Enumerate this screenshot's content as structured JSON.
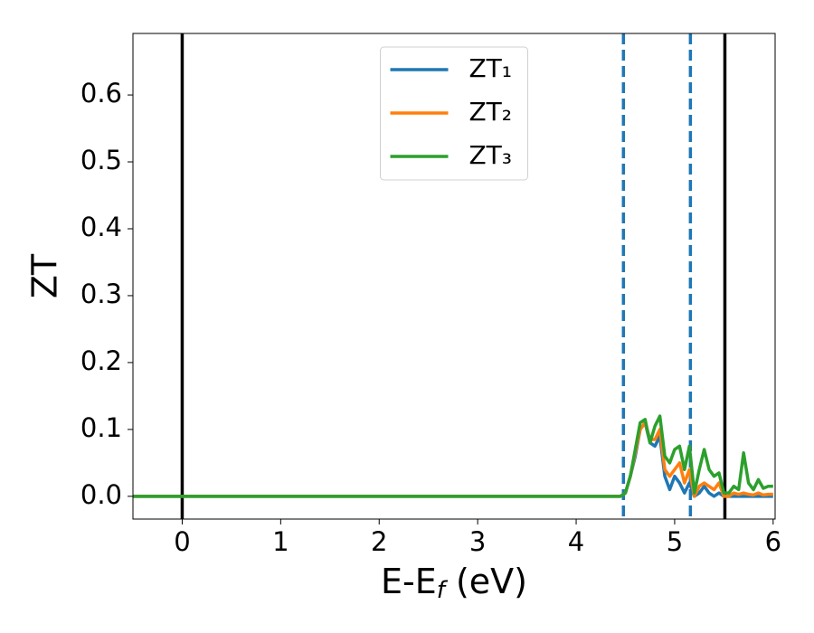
{
  "chart_data": {
    "type": "line",
    "ylabel": "ZT",
    "xlabel": [
      "E-E",
      "f",
      " (eV)"
    ],
    "x": [
      -0.5,
      4.45,
      4.5,
      4.55,
      4.6,
      4.65,
      4.7,
      4.75,
      4.8,
      4.85,
      4.9,
      4.95,
      5.0,
      5.05,
      5.1,
      5.15,
      5.2,
      5.25,
      5.3,
      5.35,
      5.4,
      5.45,
      5.5,
      5.55,
      5.6,
      5.65,
      5.7,
      5.75,
      5.8,
      5.85,
      5.9,
      5.95,
      6.0
    ],
    "series": [
      {
        "name": "ZT₁",
        "color": "#1f77b4",
        "values": [
          0,
          0,
          0.005,
          0.03,
          0.06,
          0.1,
          0.11,
          0.08,
          0.075,
          0.09,
          0.03,
          0.01,
          0.03,
          0.02,
          0.005,
          0.02,
          0.0,
          0.005,
          0.015,
          0.005,
          0.0,
          0.005,
          0,
          0,
          0,
          0,
          0,
          0,
          0,
          0,
          0,
          0,
          0
        ]
      },
      {
        "name": "ZT₂",
        "color": "#ff7f0e",
        "values": [
          0,
          0,
          0.005,
          0.03,
          0.065,
          0.1,
          0.11,
          0.085,
          0.085,
          0.1,
          0.04,
          0.03,
          0.04,
          0.05,
          0.02,
          0.04,
          0.0,
          0.015,
          0.02,
          0.015,
          0.01,
          0.02,
          0.0,
          0.0,
          0.005,
          0.003,
          0.005,
          0.003,
          0.002,
          0.005,
          0.002,
          0.003,
          0.003
        ]
      },
      {
        "name": "ZT₃",
        "color": "#2ca02c",
        "values": [
          0,
          0,
          0.005,
          0.03,
          0.07,
          0.11,
          0.115,
          0.08,
          0.105,
          0.12,
          0.06,
          0.05,
          0.07,
          0.075,
          0.04,
          0.075,
          0.005,
          0.04,
          0.07,
          0.04,
          0.03,
          0.035,
          0.005,
          0.005,
          0.015,
          0.01,
          0.065,
          0.02,
          0.01,
          0.025,
          0.012,
          0.015,
          0.015
        ]
      }
    ],
    "vlines": [
      {
        "x": 0,
        "color": "#000000",
        "style": "solid"
      },
      {
        "x": 4.48,
        "color": "#1f77b4",
        "style": "dashed"
      },
      {
        "x": 5.16,
        "color": "#1f77b4",
        "style": "dashed"
      },
      {
        "x": 5.51,
        "color": "#000000",
        "style": "solid"
      }
    ],
    "xlim": [
      -0.5,
      6.02
    ],
    "ylim": [
      -0.034,
      0.692
    ],
    "xticks": [
      0,
      1,
      2,
      3,
      4,
      5,
      6
    ],
    "yticks": [
      {
        "value": 0,
        "label": "0.0"
      },
      {
        "value": 0.1,
        "label": "0.1"
      },
      {
        "value": 0.2,
        "label": "0.2"
      },
      {
        "value": 0.3,
        "label": "0.3"
      },
      {
        "value": 0.4,
        "label": "0.4"
      },
      {
        "value": 0.5,
        "label": "0.5"
      },
      {
        "value": 0.6,
        "label": "0.6"
      }
    ],
    "legend": "upper center"
  }
}
